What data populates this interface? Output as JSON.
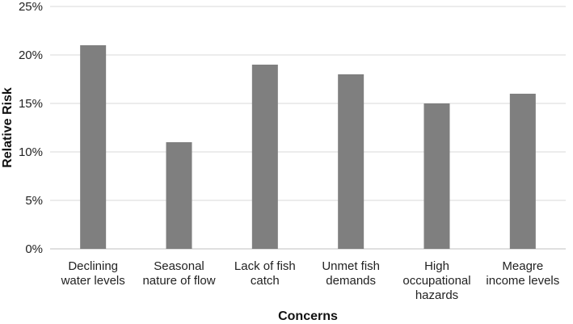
{
  "chart_data": {
    "type": "bar",
    "categories": [
      [
        "Declining",
        "water levels"
      ],
      [
        "Seasonal",
        "nature of flow"
      ],
      [
        "Lack of fish",
        "catch"
      ],
      [
        "Unmet fish",
        "demands"
      ],
      [
        "High",
        "occupational",
        "hazards"
      ],
      [
        "Meagre",
        "income levels"
      ]
    ],
    "values": [
      21,
      11,
      19,
      18,
      15,
      16
    ],
    "value_unit": "%",
    "ylim": [
      0,
      25
    ],
    "yticks": [
      "0%",
      "5%",
      "10%",
      "15%",
      "20%",
      "25%"
    ],
    "xlabel": "Concerns",
    "ylabel": "Relative Risk",
    "grid": true,
    "legend": "none",
    "bar_color": "#7f7f7f"
  }
}
